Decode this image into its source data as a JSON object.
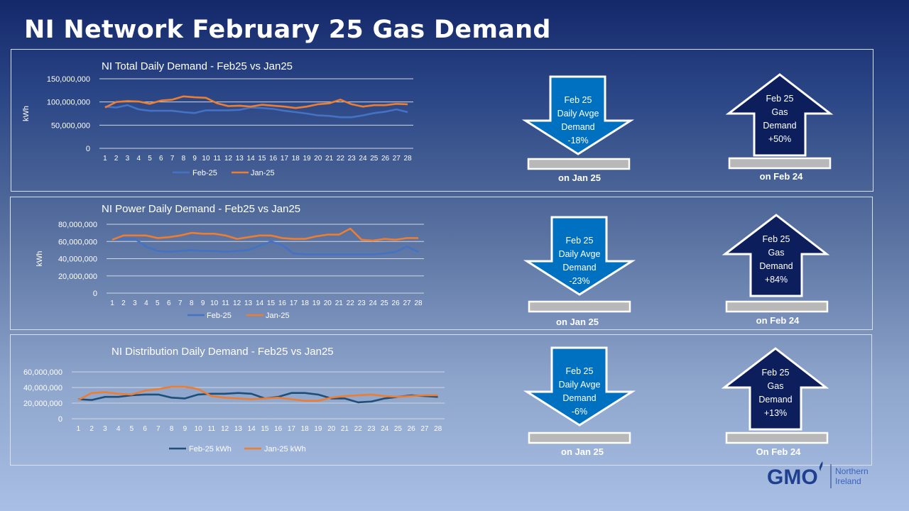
{
  "title": "NI Network February 25 Gas Demand",
  "colors": {
    "feb": "#4472c4",
    "jan": "#ed7d31",
    "feb_dist": "#1f4e79",
    "arrow_down": "#0070c0",
    "arrow_up": "#0c1f5c",
    "bar": "#b8b8b8"
  },
  "chart_data": [
    {
      "type": "line",
      "title": "NI Total Daily Demand - Feb25 vs Jan25",
      "ylabel": "kWh",
      "ylim": [
        0,
        150000000
      ],
      "yticks": [
        "0",
        "50,000,000",
        "100,000,000",
        "150,000,000"
      ],
      "grid": true,
      "legend": "bottom",
      "x": [
        1,
        2,
        3,
        4,
        5,
        6,
        7,
        8,
        9,
        10,
        11,
        12,
        13,
        14,
        15,
        16,
        17,
        18,
        19,
        20,
        21,
        22,
        23,
        24,
        25,
        26,
        27,
        28
      ],
      "series": [
        {
          "name": "Feb-25",
          "values": [
            90000000,
            88000000,
            93000000,
            84000000,
            81000000,
            81000000,
            81000000,
            78000000,
            76000000,
            82000000,
            82000000,
            82000000,
            83000000,
            88000000,
            87000000,
            85000000,
            81000000,
            78000000,
            75000000,
            71000000,
            70000000,
            67000000,
            67000000,
            71000000,
            76000000,
            79000000,
            84000000,
            78000000
          ]
        },
        {
          "name": "Jan-25",
          "values": [
            88000000,
            100000000,
            102000000,
            101000000,
            96000000,
            103000000,
            105000000,
            112000000,
            110000000,
            109000000,
            97000000,
            91000000,
            92000000,
            90000000,
            94000000,
            92000000,
            90000000,
            87000000,
            90000000,
            95000000,
            97000000,
            105000000,
            95000000,
            90000000,
            93000000,
            93000000,
            96000000,
            95000000
          ]
        }
      ]
    },
    {
      "type": "line",
      "title": "NI Power Daily Demand - Feb25 vs Jan25",
      "ylabel": "kWh",
      "ylim": [
        0,
        80000000
      ],
      "yticks": [
        "0",
        "20,000,000",
        "40,000,000",
        "60,000,000",
        "80,000,000"
      ],
      "grid": true,
      "legend": "bottom",
      "x": [
        1,
        2,
        3,
        4,
        5,
        6,
        7,
        8,
        9,
        10,
        11,
        12,
        13,
        14,
        15,
        16,
        17,
        18,
        19,
        20,
        21,
        22,
        23,
        24,
        25,
        26,
        27,
        28
      ],
      "series": [
        {
          "name": "Feb-25",
          "values": [
            62000000,
            63000000,
            63000000,
            54000000,
            49000000,
            48000000,
            49000000,
            50000000,
            49000000,
            49000000,
            48000000,
            49000000,
            50000000,
            55000000,
            60000000,
            56000000,
            46000000,
            45000000,
            45000000,
            45000000,
            45000000,
            45000000,
            45000000,
            45000000,
            46000000,
            48000000,
            54000000,
            48000000
          ]
        },
        {
          "name": "Jan-25",
          "values": [
            62000000,
            67000000,
            67000000,
            67000000,
            64000000,
            65000000,
            67000000,
            70000000,
            69000000,
            69000000,
            67000000,
            63000000,
            65000000,
            67000000,
            67000000,
            64000000,
            63000000,
            63000000,
            66000000,
            68000000,
            68000000,
            75000000,
            62000000,
            61000000,
            63000000,
            62000000,
            64000000,
            64000000
          ]
        }
      ]
    },
    {
      "type": "line",
      "title": "NI Distribution Daily Demand - Feb25 vs Jan25",
      "ylim": [
        0,
        60000000
      ],
      "yticks": [
        "0",
        "20,000,000",
        "40,000,000",
        "60,000,000"
      ],
      "grid": true,
      "legend": "bottom",
      "x": [
        1,
        2,
        3,
        4,
        5,
        6,
        7,
        8,
        9,
        10,
        11,
        12,
        13,
        14,
        15,
        16,
        17,
        18,
        19,
        20,
        21,
        22,
        23,
        24,
        25,
        26,
        27,
        28
      ],
      "series": [
        {
          "name": "Feb-25 kWh",
          "values": [
            25000000,
            24000000,
            28000000,
            28000000,
            30000000,
            31000000,
            31000000,
            27000000,
            26000000,
            31000000,
            32000000,
            32000000,
            33000000,
            32000000,
            26000000,
            28000000,
            33000000,
            33000000,
            31000000,
            26000000,
            26000000,
            21000000,
            22000000,
            26000000,
            28000000,
            30000000,
            29000000,
            28000000
          ]
        },
        {
          "name": "Jan-25 kWh",
          "values": [
            24000000,
            33000000,
            34000000,
            32000000,
            31000000,
            36000000,
            38000000,
            41000000,
            41000000,
            38000000,
            29000000,
            27000000,
            26000000,
            25000000,
            26000000,
            27000000,
            25000000,
            23000000,
            23000000,
            27000000,
            29000000,
            30000000,
            31000000,
            29000000,
            28000000,
            29000000,
            30000000,
            30000000
          ]
        }
      ]
    }
  ],
  "indicators": [
    {
      "down": {
        "lines": [
          "Feb 25",
          "Daily Avge",
          "Demand",
          "-18%"
        ],
        "caption": "on Jan 25"
      },
      "up": {
        "lines": [
          "Feb 25",
          "Gas",
          "Demand",
          "+50%"
        ],
        "caption": "on Feb 24"
      }
    },
    {
      "down": {
        "lines": [
          "Feb 25",
          "Daily Avge",
          "Demand",
          "-23%"
        ],
        "caption": "on Jan 25"
      },
      "up": {
        "lines": [
          "Feb 25",
          "Gas",
          "Demand",
          "+84%"
        ],
        "caption": "on Feb 24"
      }
    },
    {
      "down": {
        "lines": [
          "Feb 25",
          "Daily Avge",
          "Demand",
          "-6%"
        ],
        "caption": "on Jan 25"
      },
      "up": {
        "lines": [
          "Feb 25",
          "Gas",
          "Demand",
          "+13%"
        ],
        "caption": "On Feb 24"
      }
    }
  ],
  "logo": {
    "mark": "GMO",
    "line1": "Northern",
    "line2": "Ireland",
    "icon": "gas-flame-icon"
  }
}
